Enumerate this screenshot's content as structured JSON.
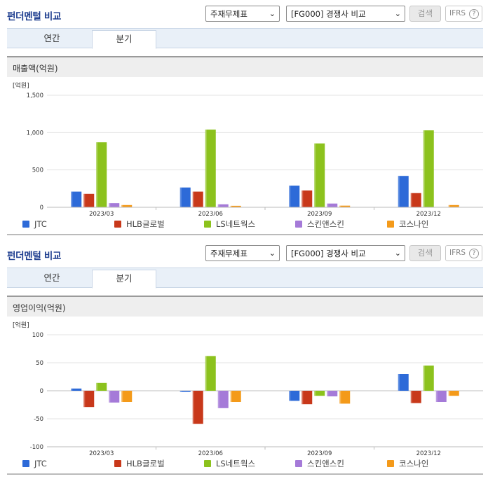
{
  "sections": [
    {
      "title": "펀더멘털 비교",
      "select_1": "주재무제표",
      "select_2": "[FG000] 경쟁사 비교",
      "search_label": "검색",
      "ifrs_label": "IFRS",
      "help_label": "?",
      "tabs": [
        "연간",
        "분기"
      ],
      "active_tab": "분기",
      "chart_title": "매출액(억원)"
    },
    {
      "title": "펀더멘털 비교",
      "select_1": "주재무제표",
      "select_2": "[FG000] 경쟁사 비교",
      "search_label": "검색",
      "ifrs_label": "IFRS",
      "help_label": "?",
      "tabs": [
        "연간",
        "분기"
      ],
      "active_tab": "분기",
      "chart_title": "영업이익(억원)"
    }
  ],
  "colors": {
    "JTC": "#2d6ad8",
    "HLB글로벌": "#c8381a",
    "LS네트웍스": "#8cc21d",
    "스킨앤스킨": "#a57ad8",
    "코스나인": "#f49a1a"
  },
  "chart_data": [
    {
      "type": "bar",
      "title": "매출액(억원)",
      "unit_label": "[억원]",
      "categories": [
        "2023/03",
        "2023/06",
        "2023/09",
        "2023/12"
      ],
      "ylim": [
        0,
        1500
      ],
      "yticks": [
        0,
        500,
        1000,
        1500
      ],
      "ytick_labels": [
        "0",
        "500",
        "1,000",
        "1,500"
      ],
      "grid": true,
      "legend": "bottom",
      "series": [
        {
          "name": "JTC",
          "values": [
            210,
            265,
            290,
            420
          ]
        },
        {
          "name": "HLB글로벌",
          "values": [
            180,
            210,
            225,
            190
          ]
        },
        {
          "name": "LS네트웍스",
          "values": [
            870,
            1040,
            855,
            1030
          ]
        },
        {
          "name": "스킨앤스킨",
          "values": [
            55,
            40,
            50,
            0
          ]
        },
        {
          "name": "코스나인",
          "values": [
            30,
            20,
            22,
            30
          ]
        }
      ]
    },
    {
      "type": "bar",
      "title": "영업이익(억원)",
      "unit_label": "[억원]",
      "categories": [
        "2023/03",
        "2023/06",
        "2023/09",
        "2023/12"
      ],
      "ylim": [
        -100,
        100
      ],
      "yticks": [
        -100,
        -50,
        0,
        50,
        100
      ],
      "ytick_labels": [
        "-100",
        "-50",
        "0",
        "50",
        "100"
      ],
      "grid": true,
      "legend": "bottom",
      "series": [
        {
          "name": "JTC",
          "values": [
            4,
            -2,
            -18,
            30
          ]
        },
        {
          "name": "HLB글로벌",
          "values": [
            -29,
            -59,
            -24,
            -22
          ]
        },
        {
          "name": "LS네트웍스",
          "values": [
            14,
            62,
            -9,
            45
          ]
        },
        {
          "name": "스킨앤스킨",
          "values": [
            -21,
            -31,
            -10,
            -20
          ]
        },
        {
          "name": "코스나인",
          "values": [
            -20,
            -20,
            -23,
            -9
          ]
        }
      ]
    }
  ]
}
